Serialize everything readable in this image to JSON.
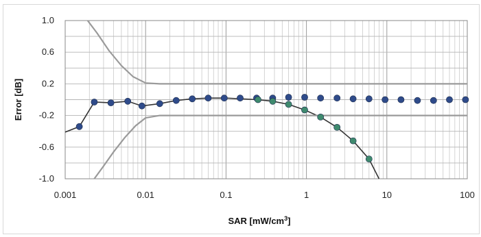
{
  "chart_data": {
    "type": "scatter",
    "title": "",
    "xlabel": "SAR [mW/cm",
    "xlabel_sup": "3",
    "xlabel_end": "]",
    "ylabel": "Error [dB]",
    "xscale": "log",
    "xlim": [
      0.001,
      100
    ],
    "ylim": [
      -1.0,
      1.0
    ],
    "grid": true,
    "legend": "none",
    "x_tick_labels": [
      "0.001",
      "0.01",
      "0.1",
      "1",
      "10",
      "100"
    ],
    "y_tick_labels": [
      "1.0",
      "0.6",
      "0.2",
      "-0.2",
      "-0.6",
      "-1.0"
    ],
    "y_ticks": [
      1.0,
      0.6,
      0.2,
      -0.2,
      -0.6,
      -1.0
    ],
    "series": [
      {
        "kind": "markers-line",
        "color": "#2f4b8a",
        "points": [
          [
            0.0015,
            -0.34
          ],
          [
            0.0023,
            -0.03
          ],
          [
            0.0037,
            -0.04
          ],
          [
            0.006,
            -0.02
          ],
          [
            0.009,
            -0.08
          ],
          [
            0.015,
            -0.05
          ],
          [
            0.024,
            -0.01
          ],
          [
            0.038,
            0.01
          ],
          [
            0.06,
            0.02
          ],
          [
            0.095,
            0.02
          ],
          [
            0.15,
            0.02
          ],
          [
            0.24,
            0.02
          ],
          [
            0.38,
            0.02
          ],
          [
            0.6,
            0.03
          ],
          [
            0.95,
            0.03
          ],
          [
            1.5,
            0.02
          ],
          [
            2.4,
            0.02
          ],
          [
            3.8,
            0.01
          ],
          [
            6.0,
            0.01
          ],
          [
            9.5,
            0.0
          ],
          [
            15,
            0.0
          ],
          [
            24,
            -0.01
          ],
          [
            38,
            -0.01
          ],
          [
            60,
            0.0
          ],
          [
            95,
            0.0
          ]
        ],
        "line": [
          [
            0.001,
            -0.41
          ],
          [
            0.0015,
            -0.34
          ],
          [
            0.0023,
            -0.03
          ],
          [
            0.0037,
            -0.04
          ],
          [
            0.006,
            -0.02
          ],
          [
            0.009,
            -0.08
          ],
          [
            0.015,
            -0.05
          ],
          [
            0.024,
            -0.01
          ],
          [
            0.038,
            0.01
          ],
          [
            0.06,
            0.02
          ],
          [
            0.1,
            0.02
          ]
        ]
      },
      {
        "kind": "markers-line",
        "color": "#3f8a6e",
        "points": [
          [
            0.25,
            0.0
          ],
          [
            0.38,
            -0.02
          ],
          [
            0.6,
            -0.06
          ],
          [
            0.95,
            -0.13
          ],
          [
            1.5,
            -0.22
          ],
          [
            2.4,
            -0.35
          ],
          [
            3.8,
            -0.52
          ],
          [
            6.0,
            -0.75
          ]
        ],
        "line": [
          [
            0.1,
            0.02
          ],
          [
            0.25,
            0.0
          ],
          [
            0.38,
            -0.02
          ],
          [
            0.6,
            -0.06
          ],
          [
            0.95,
            -0.13
          ],
          [
            1.5,
            -0.22
          ],
          [
            2.4,
            -0.35
          ],
          [
            3.8,
            -0.52
          ],
          [
            6.0,
            -0.75
          ],
          [
            8.0,
            -1.0
          ]
        ]
      },
      {
        "kind": "band-upper",
        "color": "#9a9a9a",
        "line": [
          [
            0.0019,
            1.0
          ],
          [
            0.0025,
            0.84
          ],
          [
            0.0035,
            0.62
          ],
          [
            0.005,
            0.43
          ],
          [
            0.007,
            0.29
          ],
          [
            0.01,
            0.21
          ],
          [
            0.015,
            0.2
          ],
          [
            100,
            0.2
          ]
        ]
      },
      {
        "kind": "band-lower",
        "color": "#9a9a9a",
        "line": [
          [
            0.0023,
            -1.0
          ],
          [
            0.003,
            -0.84
          ],
          [
            0.004,
            -0.66
          ],
          [
            0.0055,
            -0.48
          ],
          [
            0.0075,
            -0.33
          ],
          [
            0.01,
            -0.23
          ],
          [
            0.015,
            -0.2
          ],
          [
            100,
            -0.2
          ]
        ]
      }
    ]
  }
}
